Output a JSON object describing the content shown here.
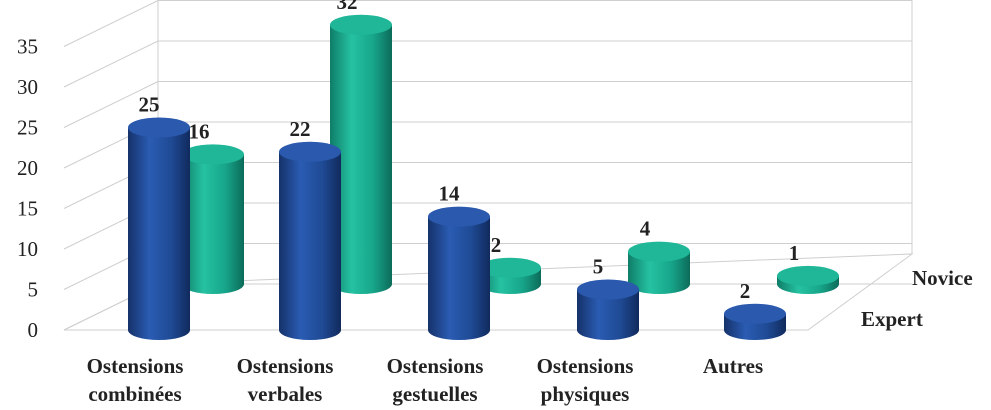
{
  "chart_data": {
    "type": "bar",
    "title": "",
    "xlabel": "",
    "ylabel": "",
    "ylim": [
      0,
      35
    ],
    "yticks": [
      0,
      5,
      10,
      15,
      20,
      25,
      30,
      35
    ],
    "grid": true,
    "categories": [
      [
        "Ostensions",
        "combinées"
      ],
      [
        "Ostensions",
        "verbales"
      ],
      [
        "Ostensions",
        "gestuelles"
      ],
      [
        "Ostensions",
        "physiques"
      ],
      [
        "Autres"
      ]
    ],
    "series": [
      {
        "name": "Expert",
        "values": [
          25,
          22,
          14,
          5,
          2
        ],
        "color": "#1f4e9a"
      },
      {
        "name": "Novice",
        "values": [
          16,
          32,
          2,
          4,
          1
        ],
        "color": "#17a58a"
      }
    ],
    "legend_position": "right-depth"
  }
}
